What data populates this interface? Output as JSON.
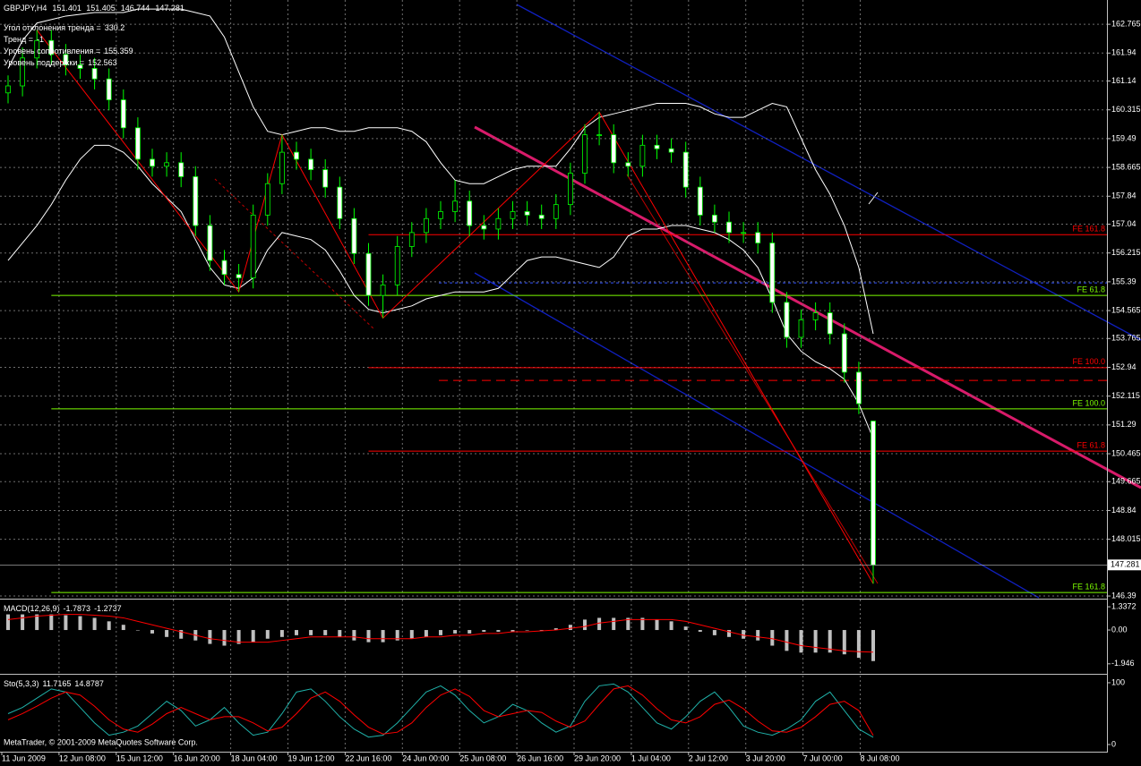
{
  "chart_data": [
    {
      "type": "candlestick",
      "title": "GBPJPY,H4",
      "open": [
        160.8,
        161.0,
        161.8,
        162.3,
        161.9,
        161.6,
        161.5,
        161.2,
        160.6,
        159.8,
        158.9,
        158.7,
        158.8,
        158.4,
        157.0,
        156.0,
        155.6,
        155.5,
        157.3,
        158.2,
        159.1,
        158.9,
        158.6,
        158.1,
        157.2,
        156.2,
        155.0,
        155.3,
        156.4,
        156.8,
        157.2,
        157.4,
        157.7,
        157.0,
        156.9,
        157.2,
        157.4,
        157.3,
        157.2,
        157.6,
        158.5,
        159.6,
        159.6,
        158.8,
        158.7,
        159.3,
        159.2,
        159.1,
        158.1,
        157.3,
        157.1,
        156.8,
        156.8,
        156.5,
        154.8,
        153.8,
        154.3,
        154.5,
        153.9,
        152.8,
        151.401
      ],
      "high": [
        161.3,
        162.1,
        162.6,
        162.6,
        162.2,
        161.9,
        161.8,
        161.5,
        160.9,
        160.1,
        159.2,
        159.1,
        159.1,
        158.7,
        157.3,
        156.3,
        155.9,
        157.6,
        158.5,
        159.6,
        159.4,
        159.2,
        158.9,
        158.4,
        157.5,
        156.5,
        155.6,
        156.7,
        157.1,
        157.5,
        157.7,
        158.3,
        158.0,
        157.3,
        157.5,
        157.7,
        157.7,
        157.6,
        157.9,
        158.8,
        159.9,
        160.25,
        159.9,
        159.1,
        159.6,
        159.6,
        159.5,
        159.4,
        158.4,
        157.6,
        157.4,
        157.1,
        157.1,
        156.8,
        155.1,
        154.6,
        154.8,
        154.8,
        154.2,
        153.1,
        151.405
      ],
      "low": [
        160.5,
        160.7,
        161.5,
        161.6,
        161.3,
        161.2,
        160.9,
        160.3,
        159.5,
        158.6,
        158.4,
        158.4,
        158.1,
        156.7,
        155.7,
        155.3,
        155.1,
        155.2,
        157.0,
        157.9,
        158.6,
        158.3,
        157.8,
        156.9,
        155.9,
        154.7,
        154.35,
        155.0,
        156.1,
        156.5,
        156.9,
        157.1,
        156.7,
        156.6,
        156.6,
        156.9,
        157.0,
        156.9,
        156.9,
        157.3,
        158.2,
        159.3,
        158.5,
        158.4,
        158.4,
        158.9,
        158.8,
        157.8,
        157.0,
        156.8,
        156.5,
        156.5,
        156.2,
        154.5,
        153.5,
        153.5,
        154.0,
        153.6,
        152.5,
        151.6,
        146.744
      ],
      "close": [
        161.0,
        161.8,
        162.3,
        161.9,
        161.6,
        161.5,
        161.2,
        160.6,
        159.8,
        158.9,
        158.7,
        158.8,
        158.4,
        157.0,
        156.0,
        155.6,
        155.5,
        157.3,
        158.2,
        159.1,
        158.9,
        158.6,
        158.1,
        157.2,
        156.2,
        155.0,
        155.3,
        156.4,
        156.8,
        157.2,
        157.4,
        157.7,
        157.0,
        156.9,
        157.2,
        157.4,
        157.3,
        157.2,
        157.6,
        158.5,
        159.6,
        159.6,
        158.8,
        158.7,
        159.3,
        159.2,
        159.1,
        158.1,
        157.3,
        157.1,
        156.8,
        156.8,
        156.5,
        154.8,
        153.8,
        154.3,
        154.5,
        153.9,
        152.8,
        151.9,
        147.281
      ],
      "bands": {
        "upper": [
          161.5,
          162.3,
          162.8,
          162.9,
          163.0,
          163.05,
          163.1,
          163.1,
          163.1,
          163.2,
          163.2,
          163.2,
          163.2,
          163.1,
          163.0,
          162.4,
          161.4,
          160.4,
          159.7,
          159.6,
          159.7,
          159.8,
          159.8,
          159.7,
          159.7,
          159.8,
          159.8,
          159.8,
          159.7,
          159.4,
          158.8,
          158.3,
          158.2,
          158.2,
          158.4,
          158.6,
          158.7,
          158.7,
          158.7,
          159.2,
          159.8,
          160.1,
          160.2,
          160.3,
          160.4,
          160.5,
          160.5,
          160.5,
          160.4,
          160.2,
          160.1,
          160.1,
          160.3,
          160.5,
          160.4,
          159.5,
          158.6,
          157.9,
          157.0,
          155.8,
          153.9
        ],
        "lower": [
          156.0,
          156.5,
          157.0,
          157.6,
          158.3,
          158.9,
          159.3,
          159.3,
          159.1,
          158.7,
          158.2,
          157.8,
          157.4,
          156.6,
          155.8,
          155.3,
          155.2,
          155.5,
          156.3,
          156.8,
          156.7,
          156.6,
          156.3,
          155.7,
          155.0,
          154.6,
          154.5,
          154.6,
          154.7,
          154.9,
          155.0,
          155.1,
          155.1,
          155.1,
          155.2,
          155.6,
          156.0,
          156.1,
          156.1,
          156.0,
          155.9,
          155.8,
          156.1,
          156.7,
          156.9,
          156.9,
          157.0,
          157.0,
          156.9,
          156.8,
          156.6,
          156.3,
          155.8,
          154.9,
          153.9,
          153.4,
          153.1,
          152.9,
          152.6,
          151.9,
          150.9
        ]
      },
      "zigzag": {
        "x": [
          2,
          16,
          19,
          26,
          41,
          60
        ],
        "values": [
          162.6,
          155.1,
          159.6,
          154.35,
          160.25,
          146.744
        ]
      },
      "levels": [
        {
          "label": "FE 161.8",
          "value": 156.74,
          "color": "#ff0000",
          "x": 25
        },
        {
          "label": "FE 61.8",
          "value": 155.0,
          "color": "#7cfc00",
          "x": 3
        },
        {
          "label": "FE 100.0",
          "value": 152.93,
          "color": "#ff0000",
          "x": 25
        },
        {
          "label": "FE 100.0",
          "value": 151.75,
          "color": "#7cfc00",
          "x": 3
        },
        {
          "label": "FE 61.8",
          "value": 150.54,
          "color": "#ff0000",
          "x": 25
        },
        {
          "label": "FE 161.8",
          "value": 146.49,
          "color": "#7cfc00",
          "x": 3
        }
      ],
      "info": [
        {
          "label": "Угол отклонения тренда =",
          "value": 330.2
        },
        {
          "label": "Тренд =",
          "value": -1
        },
        {
          "label": "Уровень сопротивления =",
          "value": 155.359,
          "color": "#3050ff"
        },
        {
          "label": "Уровень поддержки =",
          "value": 152.563,
          "color": "#ff0000"
        }
      ],
      "ylim": [
        146.34,
        163.46
      ],
      "yticks": [
        162.765,
        161.94,
        161.14,
        160.315,
        159.49,
        158.665,
        157.84,
        157.04,
        156.215,
        155.39,
        154.565,
        153.765,
        152.94,
        152.115,
        151.29,
        150.465,
        149.665,
        148.84,
        148.015,
        146.39
      ],
      "x_labels": [
        "11 Jun 2009",
        "12 Jun 08:00",
        "15 Jun 12:00",
        "16 Jun 20:00",
        "18 Jun 04:00",
        "19 Jun 12:00",
        "22 Jun 16:00",
        "24 Jun 00:00",
        "25 Jun 08:00",
        "26 Jun 16:00",
        "29 Jun 20:00",
        "1 Jul 04:00",
        "2 Jul 12:00",
        "3 Jul 20:00",
        "7 Jul 00:00",
        "8 Jul 08:00"
      ],
      "grid": true,
      "up_color": "#000000",
      "down_color": "#ffffff",
      "wick_color": "#00ff00",
      "band_color": "#ffffff",
      "zigzag_color": "#ff0000"
    },
    {
      "type": "bar",
      "title": "MACD(12,26,9)",
      "values": [
        0.9,
        0.9,
        0.9,
        0.9,
        0.85,
        0.8,
        0.7,
        0.5,
        0.3,
        0.0,
        -0.2,
        -0.4,
        -0.5,
        -0.6,
        -0.8,
        -0.9,
        -0.8,
        -0.7,
        -0.5,
        -0.4,
        -0.3,
        -0.3,
        -0.3,
        -0.4,
        -0.6,
        -0.7,
        -0.7,
        -0.6,
        -0.5,
        -0.4,
        -0.3,
        -0.2,
        -0.2,
        -0.1,
        -0.1,
        -0.1,
        0.0,
        0.0,
        0.1,
        0.3,
        0.6,
        0.7,
        0.7,
        0.7,
        0.7,
        0.6,
        0.5,
        0.2,
        -0.1,
        -0.3,
        -0.4,
        -0.5,
        -0.6,
        -0.9,
        -1.2,
        -1.3,
        -1.3,
        -1.3,
        -1.4,
        -1.6,
        -1.7873
      ],
      "signal": [
        0.6,
        0.7,
        0.8,
        0.85,
        0.9,
        0.9,
        0.85,
        0.8,
        0.7,
        0.5,
        0.3,
        0.1,
        -0.1,
        -0.3,
        -0.5,
        -0.6,
        -0.7,
        -0.7,
        -0.7,
        -0.6,
        -0.5,
        -0.4,
        -0.4,
        -0.4,
        -0.4,
        -0.5,
        -0.5,
        -0.5,
        -0.5,
        -0.4,
        -0.4,
        -0.3,
        -0.3,
        -0.2,
        -0.2,
        -0.1,
        -0.1,
        -0.05,
        0.0,
        0.1,
        0.2,
        0.4,
        0.5,
        0.6,
        0.6,
        0.6,
        0.6,
        0.5,
        0.3,
        0.1,
        -0.1,
        -0.3,
        -0.4,
        -0.5,
        -0.7,
        -0.9,
        -1.0,
        -1.1,
        -1.2,
        -1.25,
        -1.2737
      ],
      "ylim": [
        -2.47,
        1.65
      ],
      "yticks": [
        1.3372,
        {
          "value": 0,
          "label": "0.00"
        },
        -1.946
      ],
      "color": "#c0c0c0",
      "signal_color": "#ff0000"
    },
    {
      "type": "line",
      "title": "Sto(5,3,3)",
      "main": [
        50,
        60,
        75,
        90,
        85,
        60,
        35,
        15,
        20,
        30,
        50,
        70,
        55,
        30,
        40,
        60,
        35,
        15,
        20,
        50,
        85,
        90,
        70,
        45,
        25,
        12,
        15,
        35,
        60,
        85,
        95,
        80,
        55,
        35,
        45,
        65,
        55,
        35,
        20,
        30,
        70,
        95,
        98,
        85,
        60,
        35,
        25,
        45,
        70,
        85,
        60,
        30,
        20,
        15,
        25,
        40,
        70,
        85,
        55,
        25,
        11.7165
      ],
      "signal": [
        40,
        50,
        62,
        75,
        85,
        80,
        62,
        40,
        25,
        20,
        33,
        50,
        60,
        50,
        40,
        45,
        45,
        35,
        22,
        28,
        50,
        75,
        85,
        70,
        48,
        28,
        17,
        20,
        35,
        60,
        80,
        90,
        78,
        55,
        45,
        50,
        55,
        52,
        38,
        28,
        38,
        65,
        90,
        95,
        80,
        58,
        40,
        35,
        45,
        65,
        72,
        58,
        38,
        22,
        20,
        28,
        45,
        65,
        70,
        55,
        14.8787
      ],
      "ylim": [
        -11.6,
        110.1
      ],
      "yticks": [
        100,
        0
      ],
      "color": "#20b2aa",
      "signal_color": "#ff0000",
      "copyright": "MetaTrader, © 2001-2009 MetaQuotes Software Corp."
    }
  ]
}
